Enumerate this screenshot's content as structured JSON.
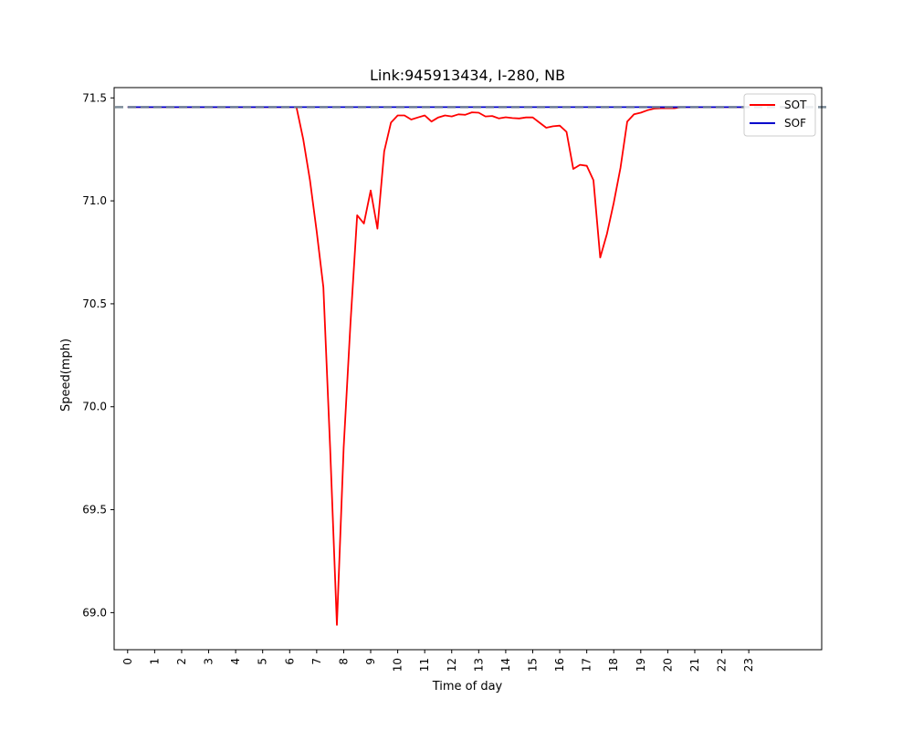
{
  "chart_data": {
    "type": "line",
    "title": "Link:945913434, I-280, NB",
    "xlabel": "Time of day",
    "ylabel": "Speed(mph)",
    "xlim": [
      -0.5,
      25.7
    ],
    "ylim": [
      68.82,
      71.55
    ],
    "x_ticks": [
      0,
      1,
      2,
      3,
      4,
      5,
      6,
      7,
      8,
      9,
      10,
      11,
      12,
      13,
      14,
      15,
      16,
      17,
      18,
      19,
      20,
      21,
      22,
      23
    ],
    "y_ticks": [
      69.0,
      69.5,
      70.0,
      70.5,
      71.0,
      71.5
    ],
    "y_tick_labels": [
      "69.0",
      "69.5",
      "70.0",
      "70.5",
      "71.0",
      "71.5"
    ],
    "grid": false,
    "legend_position": "top-right",
    "series": [
      {
        "name": "SOT",
        "color": "#ff0000",
        "style": "solid",
        "x": [
          0,
          6,
          6.25,
          6.5,
          6.75,
          7,
          7.25,
          7.5,
          7.75,
          8,
          8.25,
          8.5,
          8.75,
          9,
          9.25,
          9.5,
          9.75,
          10,
          10.25,
          10.5,
          10.75,
          11,
          11.25,
          11.5,
          11.75,
          12,
          12.25,
          12.5,
          12.75,
          13,
          13.25,
          13.5,
          13.75,
          14,
          14.25,
          14.5,
          14.75,
          15,
          15.25,
          15.5,
          15.75,
          16,
          16.25,
          16.5,
          16.75,
          17,
          17.25,
          17.5,
          17.75,
          18,
          18.25,
          18.5,
          18.75,
          19,
          19.25,
          19.5,
          19.75,
          20,
          20.25,
          20.5,
          21,
          22,
          23
        ],
        "values": [
          71.455,
          71.455,
          71.455,
          71.3,
          71.1,
          70.85,
          70.58,
          69.8,
          68.94,
          69.8,
          70.4,
          70.93,
          70.89,
          71.05,
          70.865,
          71.24,
          71.38,
          71.415,
          71.415,
          71.395,
          71.405,
          71.415,
          71.385,
          71.405,
          71.415,
          71.41,
          71.42,
          71.418,
          71.43,
          71.428,
          71.41,
          71.412,
          71.4,
          71.406,
          71.402,
          71.4,
          71.405,
          71.405,
          71.38,
          71.355,
          71.362,
          71.365,
          71.335,
          71.155,
          71.175,
          71.17,
          71.1,
          70.725,
          70.84,
          70.99,
          71.16,
          71.385,
          71.42,
          71.428,
          71.44,
          71.448,
          71.45,
          71.45,
          71.45,
          71.455,
          71.455,
          71.455,
          71.455
        ]
      },
      {
        "name": "SOF",
        "color": "#0000cc",
        "style": "solid",
        "x": [
          0,
          23
        ],
        "values": [
          71.455,
          71.455
        ]
      }
    ],
    "reference_lines": [
      {
        "value": 71.455,
        "color": "#708090",
        "style": "dashed"
      }
    ]
  }
}
